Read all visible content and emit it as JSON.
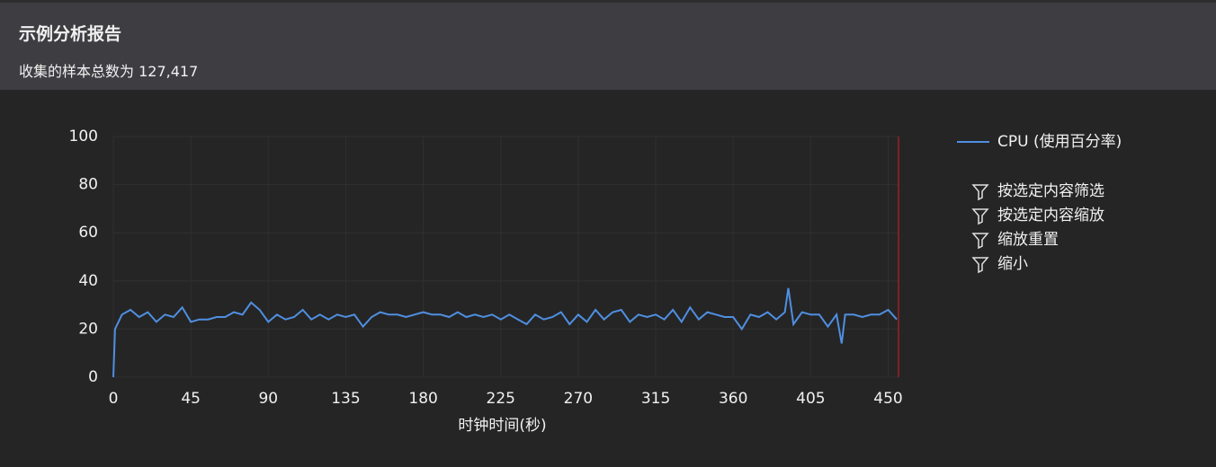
{
  "header": {
    "title": "示例分析报告",
    "subtitle": "收集的样本总数为 127,417"
  },
  "chart_data": {
    "type": "line",
    "x": [
      0,
      1,
      5,
      10,
      15,
      20,
      25,
      30,
      35,
      40,
      45,
      50,
      55,
      60,
      65,
      70,
      75,
      80,
      85,
      90,
      95,
      100,
      105,
      110,
      115,
      120,
      125,
      130,
      135,
      140,
      145,
      150,
      155,
      160,
      165,
      170,
      175,
      180,
      185,
      190,
      195,
      200,
      205,
      210,
      215,
      220,
      225,
      230,
      235,
      240,
      245,
      250,
      255,
      260,
      265,
      270,
      275,
      280,
      285,
      290,
      295,
      300,
      305,
      310,
      315,
      320,
      325,
      330,
      335,
      340,
      345,
      350,
      355,
      360,
      365,
      370,
      375,
      380,
      385,
      390,
      392,
      395,
      400,
      405,
      410,
      415,
      420,
      423,
      425,
      430,
      435,
      440,
      445,
      450,
      455
    ],
    "series": [
      {
        "name": "CPU (使用百分率)",
        "color": "#4f8fe0",
        "values": [
          0,
          20,
          26,
          28,
          25,
          27,
          23,
          26,
          25,
          29,
          23,
          24,
          24,
          25,
          25,
          27,
          26,
          31,
          28,
          23,
          26,
          24,
          25,
          28,
          24,
          26,
          24,
          26,
          25,
          26,
          21,
          25,
          27,
          26,
          26,
          25,
          26,
          27,
          26,
          26,
          25,
          27,
          25,
          26,
          25,
          26,
          24,
          26,
          24,
          22,
          26,
          24,
          25,
          27,
          22,
          26,
          23,
          28,
          24,
          27,
          28,
          23,
          26,
          25,
          26,
          24,
          28,
          23,
          29,
          24,
          27,
          26,
          25,
          25,
          20,
          26,
          25,
          27,
          24,
          27,
          37,
          22,
          27,
          26,
          26,
          21,
          26,
          14,
          26,
          26,
          25,
          26,
          26,
          28,
          24
        ]
      }
    ],
    "xlabel": "时钟时间(秒)",
    "xlim": [
      0,
      456
    ],
    "xticks": [
      0,
      45,
      90,
      135,
      180,
      225,
      270,
      315,
      360,
      405,
      450
    ],
    "ylim": [
      0,
      100
    ],
    "yticks": [
      0,
      20,
      40,
      60,
      80,
      100
    ],
    "grid": true
  },
  "menu": [
    "按选定内容筛选",
    "按选定内容缩放",
    "缩放重置",
    "缩小"
  ]
}
